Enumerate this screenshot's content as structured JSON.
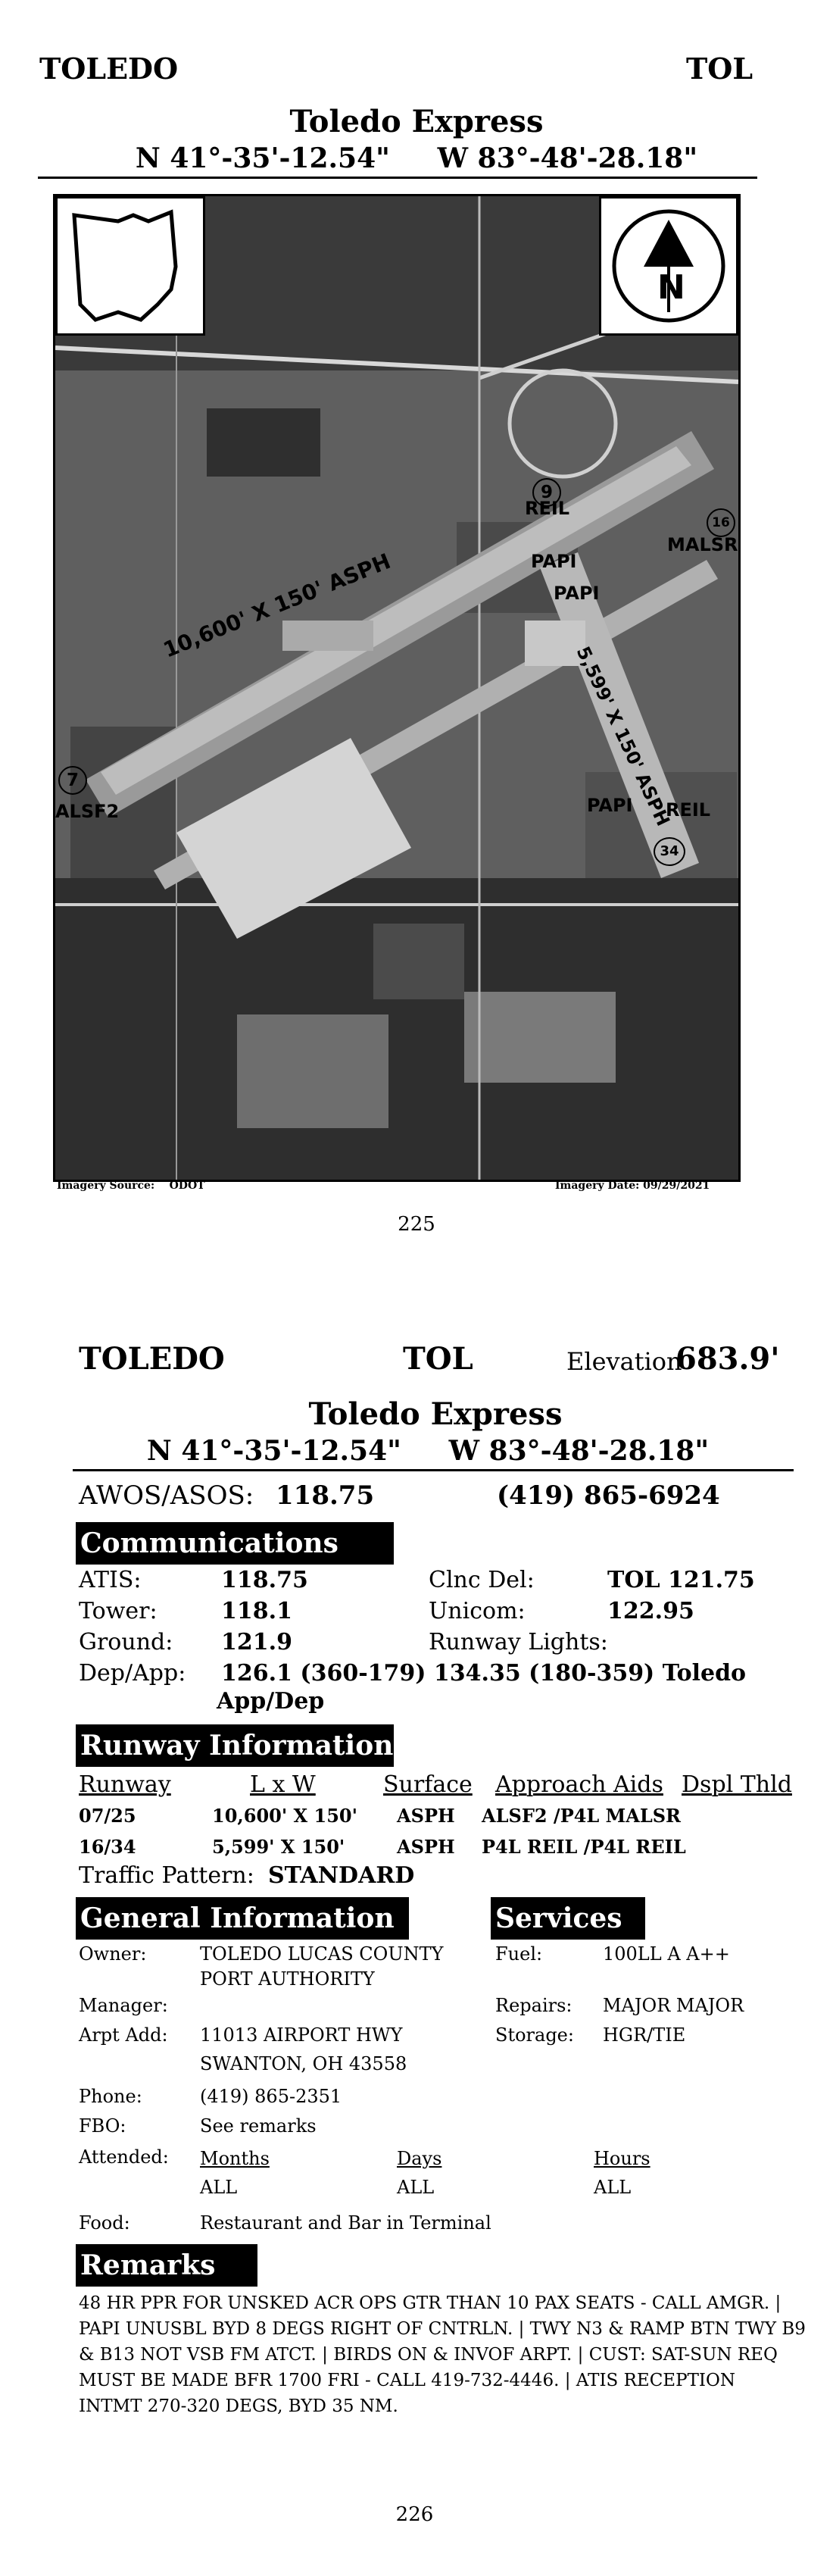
{
  "page1": {
    "city": "TOLEDO",
    "code": "TOL",
    "airport_name": "Toledo Express",
    "coords": "N 41°-35'-12.54\"     W 83°-48'-28.18\"",
    "photo_labels": {
      "reil_top": "REIL",
      "malsr": "MALSR",
      "papi_1": "PAPI",
      "papi_2": "PAPI",
      "runway_main": "10,600' X 150' ASPH",
      "runway_cross": "5,599' X 150' ASPH",
      "papi_3": "PAPI",
      "reil_bottom": "REIL",
      "alsf2": "ALSF2",
      "north": "N",
      "rwy_9": "9",
      "rwy_16": "16",
      "rwy_34": "34",
      "rwy_7": "7"
    },
    "imagery_source": "Imagery Source:    ODOT",
    "imagery_date": "Imagery Date:  09/29/2021",
    "page_number": "225"
  },
  "page2": {
    "city": "TOLEDO",
    "code": "TOL",
    "elevation_label": "Elevation",
    "elevation_value": "683.9'",
    "airport_name": "Toledo Express",
    "coords": "N 41°-35'-12.54\"     W 83°-48'-28.18\"",
    "awos_label": "AWOS/ASOS:",
    "awos_value": "118.75",
    "awos_phone": "(419) 865-6924",
    "communications": {
      "title": "Communications",
      "atis_label": "ATIS:",
      "atis_value": "118.75",
      "tower_label": "Tower:",
      "tower_value": "118.1",
      "ground_label": "Ground:",
      "ground_value": "121.9",
      "depapp_label": "Dep/App:",
      "depapp_value_1": "126.1 (360-179) 134.35 (180-359) Toledo",
      "depapp_value_2": "App/Dep",
      "clnc_label": "Clnc Del:",
      "clnc_value": "TOL 121.75",
      "unicom_label": "Unicom:",
      "unicom_value": "122.95",
      "lights_label": "Runway Lights:"
    },
    "runway": {
      "title": "Runway Information",
      "headers": [
        "Runway",
        "L x W",
        "Surface",
        "Approach Aids",
        "Dspl Thld"
      ],
      "rows": [
        {
          "runway": "07/25",
          "lxw": "10,600' X 150'",
          "surface": "ASPH",
          "aids": "ALSF2 /P4L MALSR"
        },
        {
          "runway": "16/34",
          "lxw": "5,599' X 150'",
          "surface": "ASPH",
          "aids": "P4L REIL /P4L REIL"
        }
      ],
      "pattern_label": "Traffic Pattern:",
      "pattern_value": "STANDARD"
    },
    "general": {
      "title": "General Information",
      "owner_label": "Owner:",
      "owner_value_1": "TOLEDO LUCAS COUNTY",
      "owner_value_2": "PORT AUTHORITY",
      "manager_label": "Manager:",
      "addr_label": "Arpt Add:",
      "addr_value_1": "11013 AIRPORT HWY",
      "addr_value_2": "SWANTON, OH 43558",
      "phone_label": "Phone:",
      "phone_value": "(419) 865-2351",
      "fbo_label": "FBO:",
      "fbo_value": "See remarks",
      "attended_label": "Attended:",
      "months_label": "Months",
      "days_label": "Days",
      "hours_label": "Hours",
      "months_value": "ALL",
      "days_value": "ALL",
      "hours_value": "ALL",
      "food_label": "Food:",
      "food_value": "Restaurant and Bar in Terminal"
    },
    "services": {
      "title": "Services",
      "fuel_label": "Fuel:",
      "fuel_value": "100LL A A++",
      "repairs_label": "Repairs:",
      "repairs_value": "MAJOR MAJOR",
      "storage_label": "Storage:",
      "storage_value": "HGR/TIE"
    },
    "remarks": {
      "title": "Remarks",
      "lines": [
        "48 HR PPR FOR UNSKED ACR OPS GTR THAN 10 PAX SEATS - CALL AMGR. |",
        "PAPI UNUSBL BYD 8 DEGS RIGHT OF CNTRLN. | TWY N3 & RAMP BTN TWY B9",
        "& B13 NOT VSB FM ATCT. | BIRDS ON & INVOF ARPT. | CUST: SAT-SUN REQ",
        "MUST BE MADE BFR 1700 FRI - CALL 419-732-4446. | ATIS RECEPTION",
        "INTMT 270-320 DEGS, BYD 35 NM."
      ]
    },
    "page_number": "226"
  }
}
